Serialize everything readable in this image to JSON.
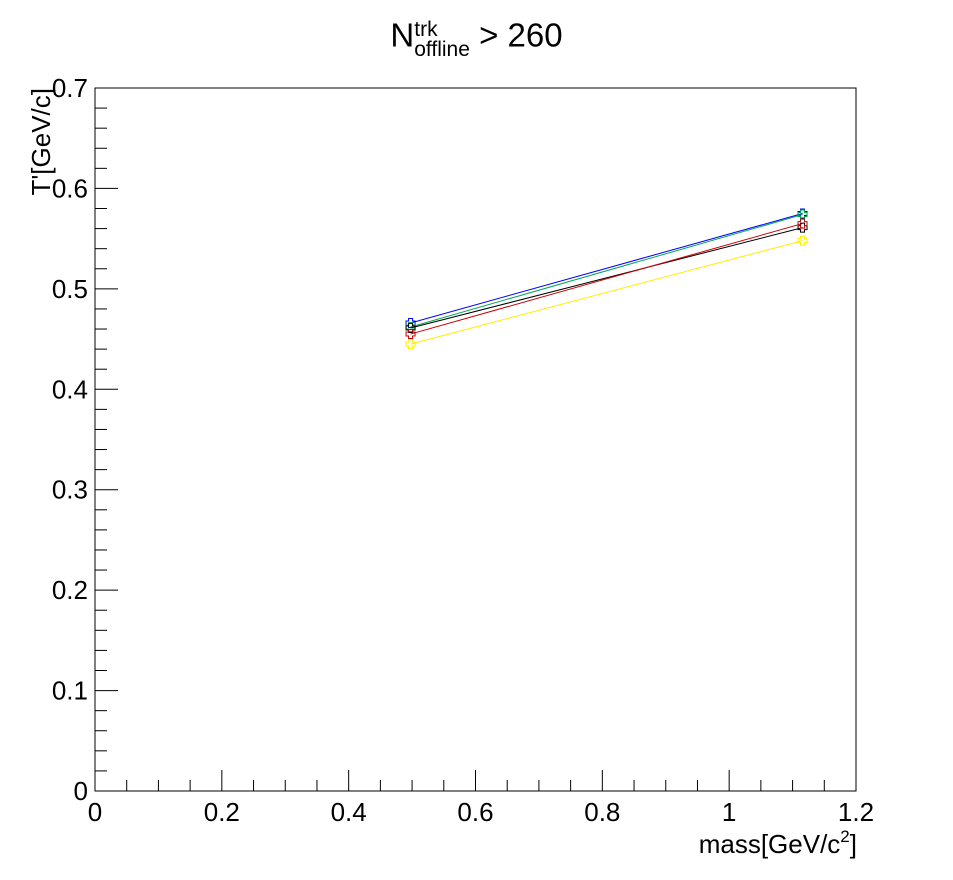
{
  "title": {
    "symbol": "N",
    "superscript": "trk",
    "subscript": "offline",
    "condition": "> 260"
  },
  "chart_data": {
    "type": "line",
    "title": "N^trk_offline > 260",
    "xlabel": "mass[GeV/c",
    "xlabel_sup": "2",
    "xlabel_suffix": "]",
    "ylabel": "T'[GeV/c]",
    "xlim": [
      0,
      1.2
    ],
    "ylim": [
      0,
      0.7
    ],
    "x_ticks": [
      "0",
      "0.2",
      "0.4",
      "0.6",
      "0.8",
      "1",
      "1.2"
    ],
    "y_ticks": [
      "0",
      "0.1",
      "0.2",
      "0.3",
      "0.4",
      "0.5",
      "0.6",
      "0.7"
    ],
    "x_tick_values": [
      0,
      0.2,
      0.4,
      0.6,
      0.8,
      1.0,
      1.2
    ],
    "y_tick_values": [
      0,
      0.1,
      0.2,
      0.3,
      0.4,
      0.5,
      0.6,
      0.7
    ],
    "grid": false,
    "legend": "none",
    "x": [
      0.4976,
      1.1157
    ],
    "series": [
      {
        "color": "#0000ff",
        "marker": "open-cross",
        "values": [
          0.466,
          0.575
        ]
      },
      {
        "color": "#00aa55",
        "marker": "open-cross",
        "values": [
          0.462,
          0.574
        ]
      },
      {
        "color": "#000000",
        "marker": "open-cross",
        "values": [
          0.461,
          0.561
        ]
      },
      {
        "color": "#cc0000",
        "marker": "open-cross",
        "values": [
          0.455,
          0.565
        ]
      },
      {
        "color": "#ffee00",
        "marker": "open-cross",
        "values": [
          0.445,
          0.548
        ]
      }
    ]
  }
}
